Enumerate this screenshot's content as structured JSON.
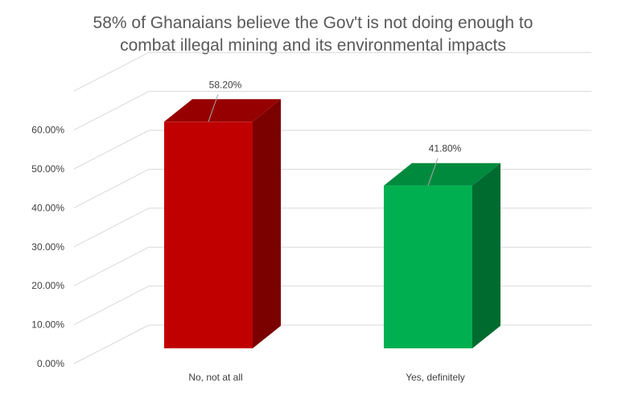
{
  "chart_data": {
    "type": "bar",
    "style": "3d-column",
    "title_lines": [
      "58% of Ghanaians believe the Gov't is not doing enough to",
      "combat illegal mining and its environmental impacts"
    ],
    "categories": [
      "No, not at all",
      "Yes, definitely"
    ],
    "values": [
      58.2,
      41.8
    ],
    "data_labels": [
      "58.20%",
      "41.80%"
    ],
    "colors": [
      {
        "front": "#c00000",
        "side": "#7b0000",
        "top": "#960000"
      },
      {
        "front": "#00b050",
        "side": "#006b2f",
        "top": "#008a3e"
      }
    ],
    "ylim": [
      0,
      60
    ],
    "y_ticks": [
      "0.00%",
      "10.00%",
      "20.00%",
      "30.00%",
      "40.00%",
      "50.00%",
      "60.00%"
    ],
    "grid": true,
    "legend": "none",
    "xlabel": "",
    "ylabel": ""
  }
}
